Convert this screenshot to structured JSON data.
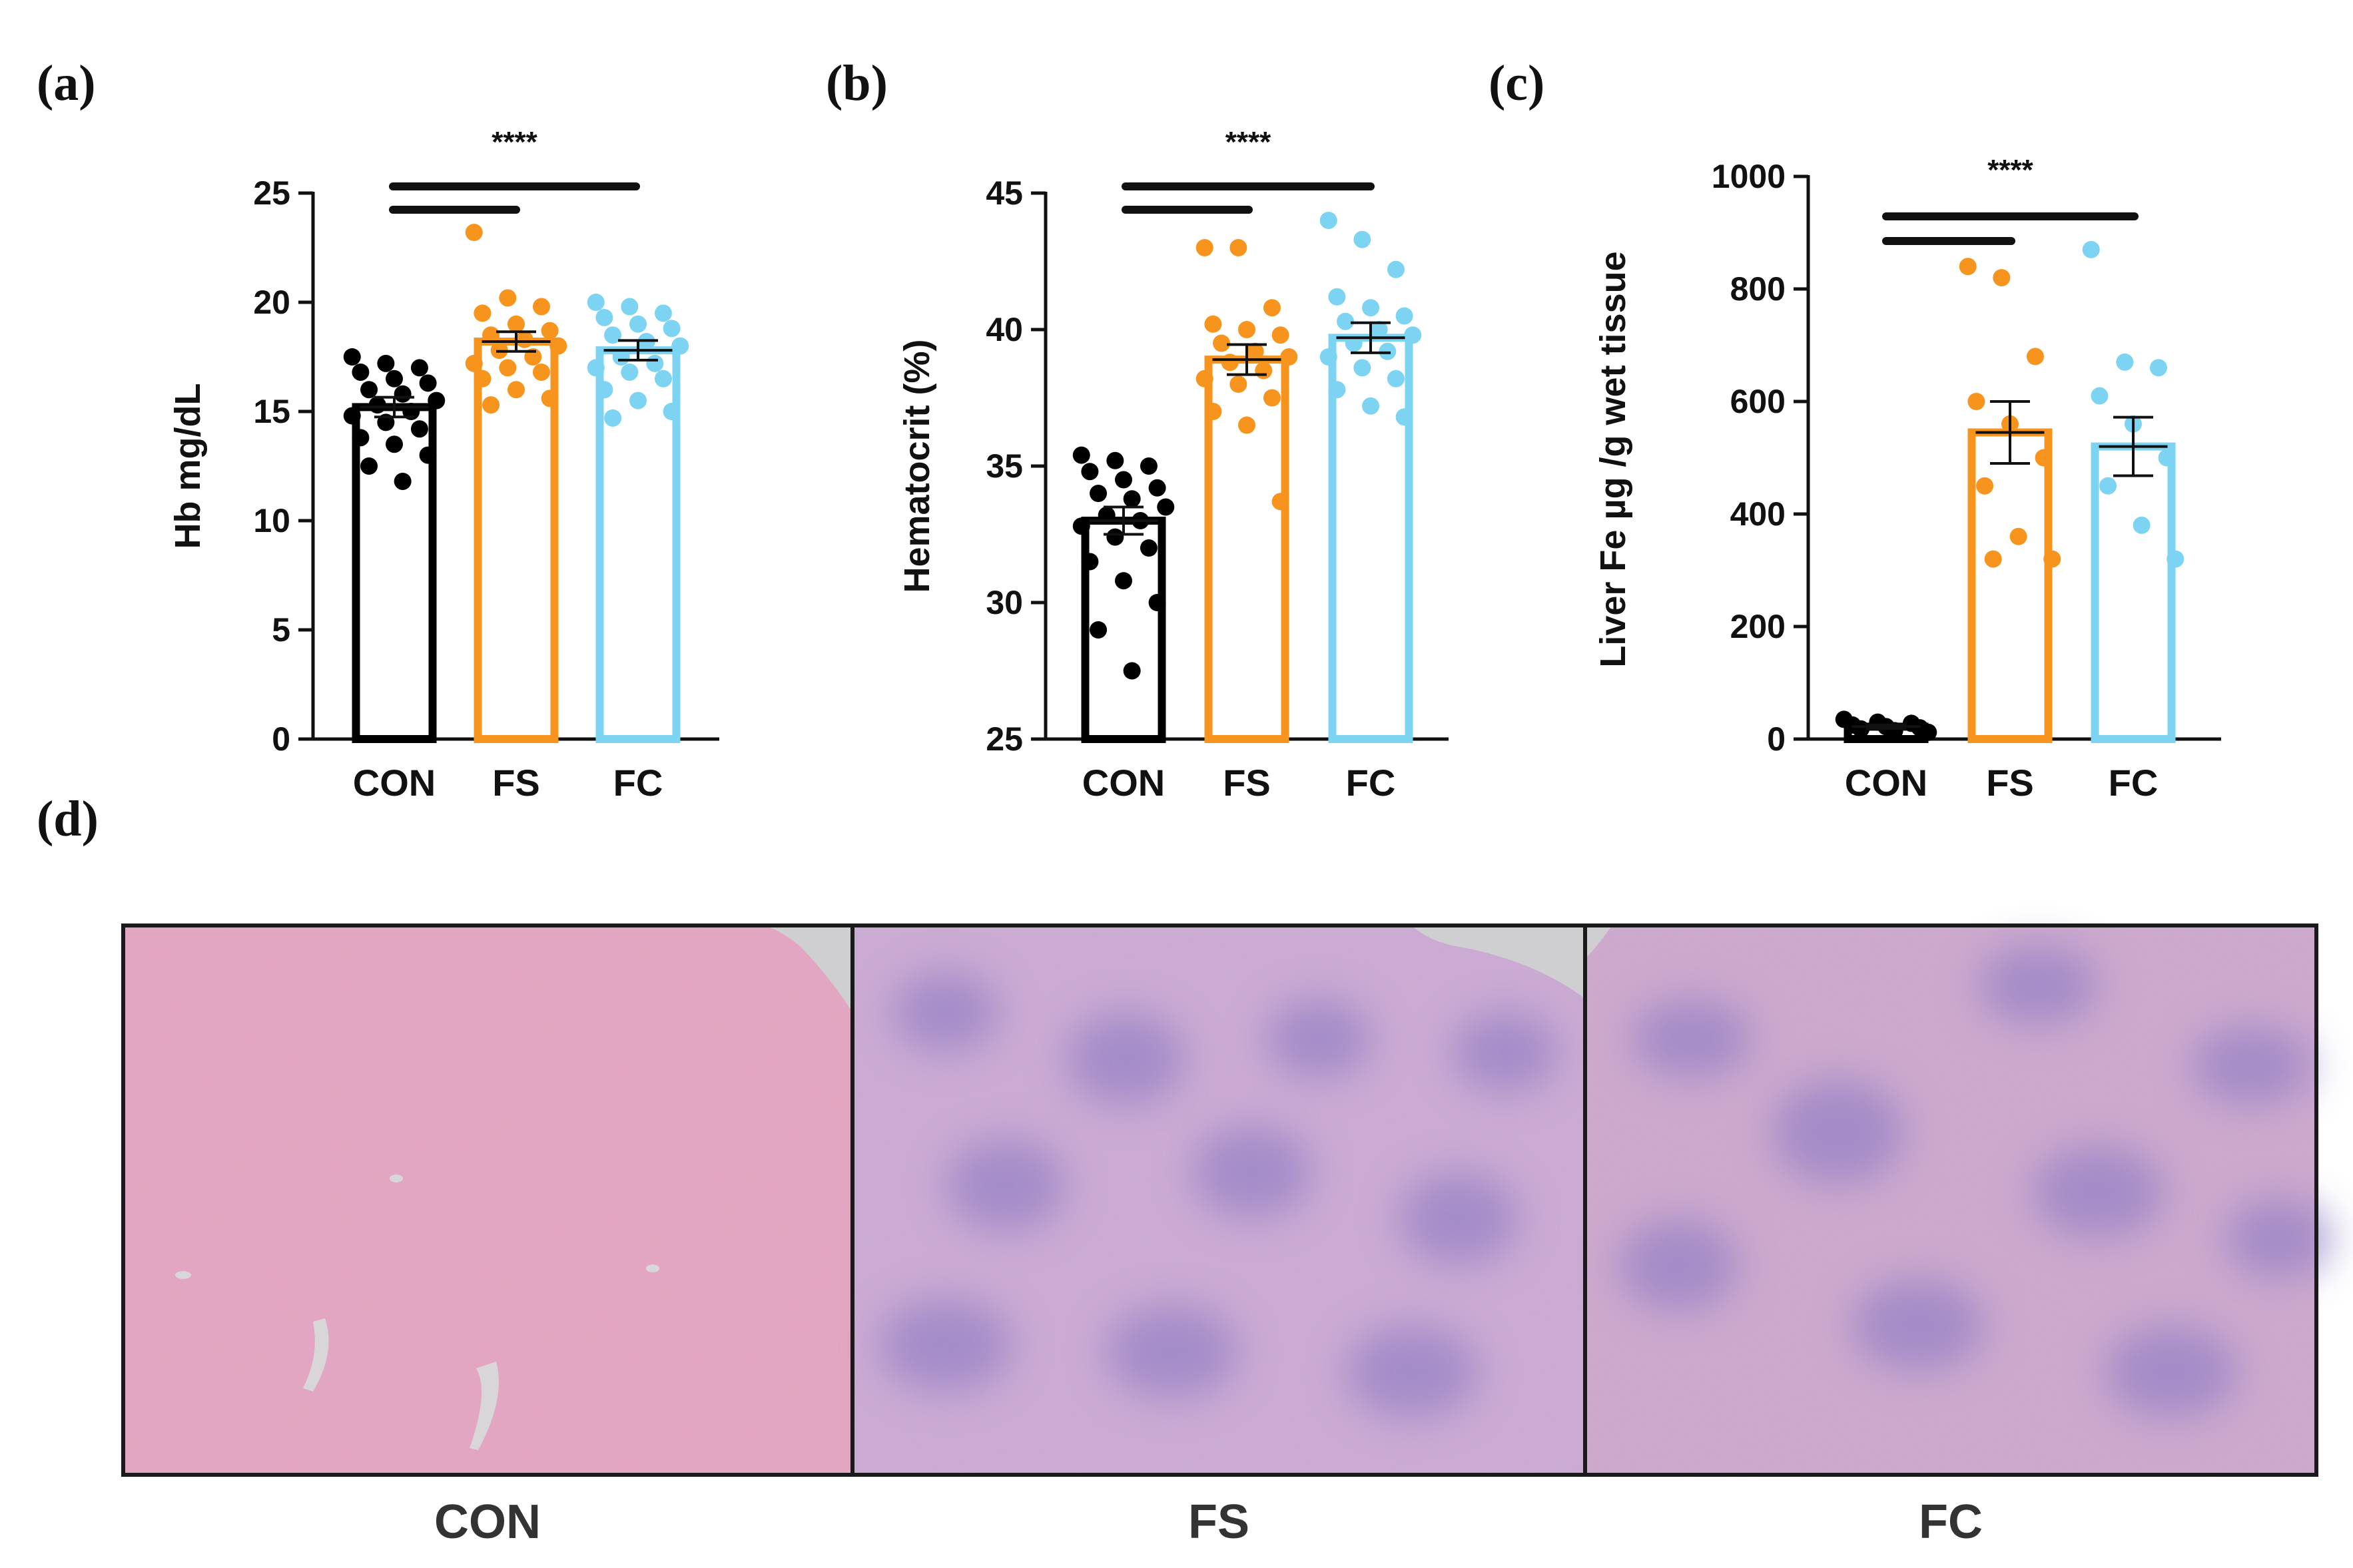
{
  "figure": {
    "colors": {
      "CON": "#000000",
      "FS": "#F7941D",
      "FC": "#7DD3F2"
    }
  },
  "chart_data": [
    {
      "panel": "(a)",
      "type": "bar",
      "categories": [
        "CON",
        "FS",
        "FC"
      ],
      "values": [
        15.2,
        18.2,
        17.8
      ],
      "sem": [
        0.45,
        0.45,
        0.45
      ],
      "ylabel": "Hb mg/dL",
      "ylim": [
        0,
        25
      ],
      "yticks": [
        0,
        5,
        10,
        15,
        20,
        25
      ],
      "significance": "****",
      "points": [
        [
          17.5,
          17.2,
          17.0,
          16.8,
          16.5,
          16.3,
          16.0,
          15.8,
          15.5,
          15.3,
          15.0,
          14.8,
          14.5,
          14.2,
          13.8,
          13.5,
          13.0,
          12.5,
          11.8
        ],
        [
          23.2,
          20.2,
          19.8,
          19.5,
          19.0,
          18.7,
          18.5,
          18.3,
          18.0,
          17.8,
          17.5,
          17.2,
          17.0,
          16.8,
          16.5,
          16.0,
          15.6,
          15.3
        ],
        [
          20.0,
          19.8,
          19.5,
          19.3,
          19.0,
          18.8,
          18.5,
          18.2,
          18.0,
          17.5,
          17.2,
          17.0,
          16.8,
          16.5,
          16.0,
          15.5,
          15.0,
          14.7
        ]
      ]
    },
    {
      "panel": "(b)",
      "type": "bar",
      "categories": [
        "CON",
        "FS",
        "FC"
      ],
      "values": [
        33.0,
        38.9,
        39.7
      ],
      "sem": [
        0.5,
        0.55,
        0.55
      ],
      "ylabel": "Hematocrit (%)",
      "ylim": [
        25,
        45
      ],
      "yticks": [
        25,
        30,
        35,
        40,
        45
      ],
      "significance": "****",
      "points": [
        [
          35.4,
          35.2,
          35.0,
          34.8,
          34.5,
          34.2,
          34.0,
          33.8,
          33.5,
          33.2,
          33.0,
          32.8,
          32.4,
          32.0,
          31.5,
          30.8,
          30.0,
          29.0,
          27.5
        ],
        [
          43.0,
          43.0,
          40.8,
          40.2,
          40.0,
          39.8,
          39.5,
          39.2,
          39.0,
          38.8,
          38.5,
          38.2,
          38.0,
          37.5,
          37.0,
          36.5,
          33.7
        ],
        [
          44.0,
          43.3,
          42.2,
          41.2,
          40.8,
          40.5,
          40.3,
          40.0,
          39.8,
          39.5,
          39.2,
          39.0,
          38.6,
          38.2,
          37.8,
          37.2,
          36.8
        ]
      ]
    },
    {
      "panel": "(c)",
      "type": "bar",
      "categories": [
        "CON",
        "FS",
        "FC"
      ],
      "values": [
        22,
        545,
        520
      ],
      "sem": [
        3,
        55,
        52
      ],
      "ylabel": "Liver Fe µg /g wet tissue",
      "ylim": [
        0,
        1000
      ],
      "yticks": [
        0,
        200,
        400,
        600,
        800,
        1000
      ],
      "significance": "****",
      "points": [
        [
          35,
          30,
          28,
          25,
          22,
          20,
          18,
          15,
          12
        ],
        [
          840,
          820,
          680,
          600,
          560,
          500,
          450,
          360,
          320,
          320
        ],
        [
          870,
          670,
          660,
          610,
          560,
          500,
          450,
          380,
          320
        ]
      ]
    }
  ],
  "histology": {
    "panel_label": "(d)",
    "captions": [
      "CON",
      "FS",
      "FC"
    ]
  }
}
